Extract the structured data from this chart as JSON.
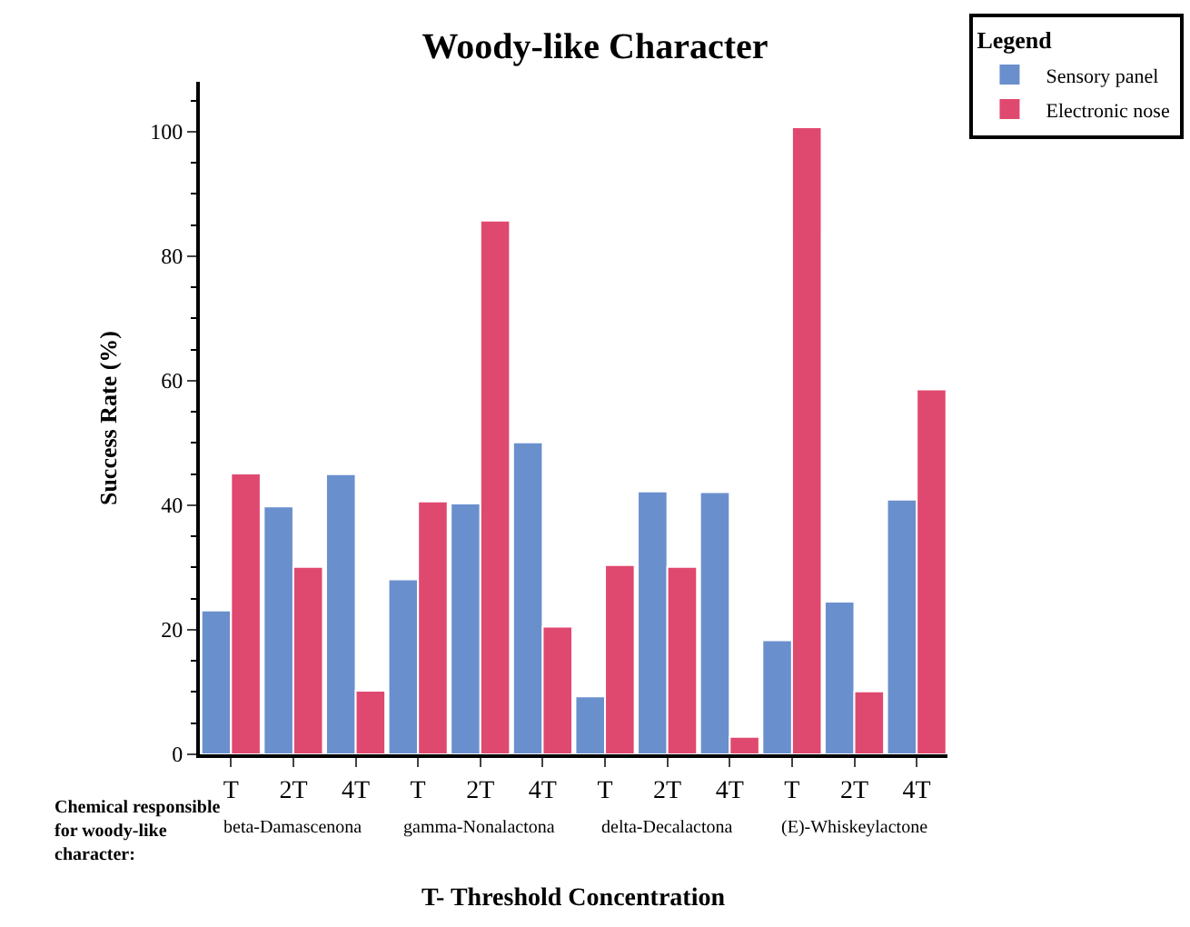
{
  "chart_data": {
    "type": "bar",
    "title": "Woody-like Character",
    "xlabel": "T- Threshold Concentration",
    "ylabel": "Success Rate (%)",
    "legend_title": "Legend",
    "legend": "top right",
    "categories": [
      "T",
      "2T",
      "4T",
      "T",
      "2T",
      "4T",
      "T",
      "2T",
      "4T",
      "T",
      "2T",
      "4T"
    ],
    "series": [
      {
        "name": "Sensory panel",
        "color": "#6a8fcd",
        "values": [
          23.1,
          39.8,
          45.0,
          28.1,
          40.3,
          50.1,
          9.3,
          42.2,
          42.1,
          18.3,
          24.5,
          40.9
        ]
      },
      {
        "name": "Electronic nose",
        "color": "#e0496f",
        "values": [
          45.1,
          30.1,
          10.2,
          40.6,
          85.7,
          20.5,
          30.4,
          30.1,
          2.8,
          100.7,
          10.1,
          58.6
        ]
      }
    ],
    "ylim": [
      0,
      108
    ],
    "yticks": [
      0,
      20,
      40,
      60,
      80,
      100
    ],
    "annotations": [
      "Chemical responsible\nfor woody-like\ncharacter:",
      "beta-Damascenona",
      "gamma-Nonalactona",
      "delta-Decalactona",
      "(E)-Whiskeylactone"
    ]
  }
}
